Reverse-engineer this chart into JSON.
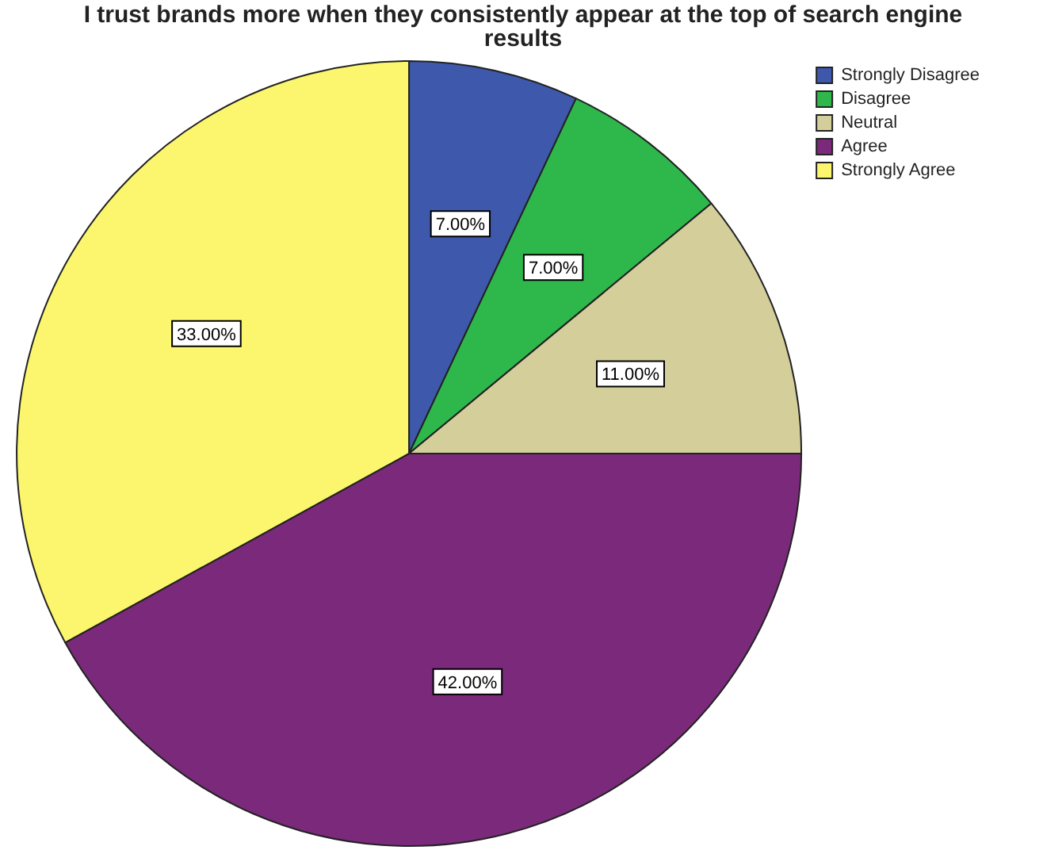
{
  "chart_data": {
    "type": "pie",
    "title": "I trust brands more when they consistently appear at the top of search engine results",
    "categories": [
      "Strongly Disagree",
      "Disagree",
      "Neutral",
      "Agree",
      "Strongly Agree"
    ],
    "values": [
      7,
      7,
      11,
      42,
      33
    ],
    "value_labels": [
      "7.00%",
      "7.00%",
      "11.00%",
      "42.00%",
      "33.00%"
    ],
    "colors": [
      "#3e58ac",
      "#2eb84b",
      "#d4cf9a",
      "#7b297b",
      "#fbf66d"
    ],
    "legend": "top right"
  }
}
